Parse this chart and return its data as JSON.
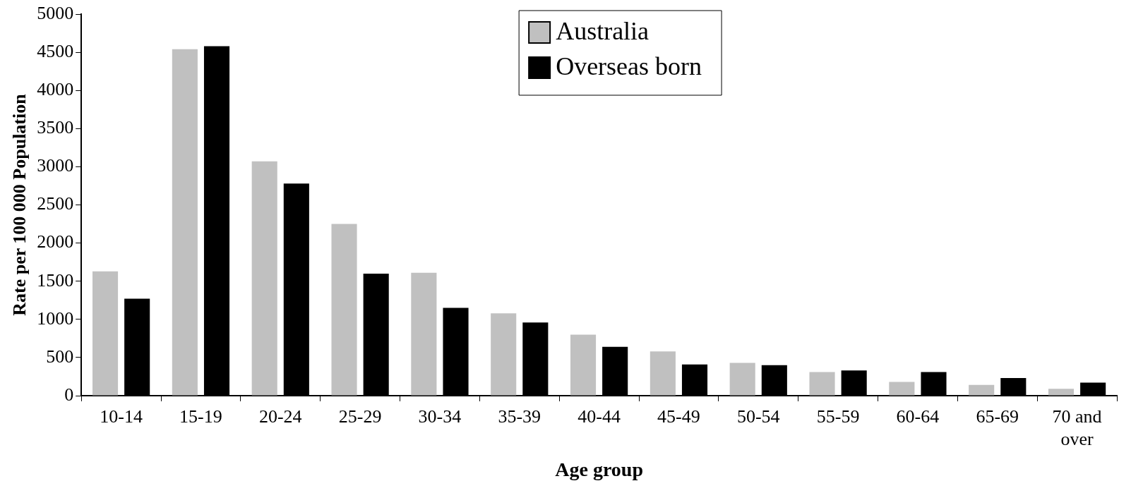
{
  "chart_data": {
    "type": "bar",
    "xlabel": "Age group",
    "ylabel": "Rate per 100 000 Population",
    "categories": [
      "10-14",
      "15-19",
      "20-24",
      "25-29",
      "30-34",
      "35-39",
      "40-44",
      "45-49",
      "50-54",
      "55-59",
      "60-64",
      "65-69",
      "70 and over"
    ],
    "series": [
      {
        "name": "Australia",
        "color": "#c0c0c0",
        "values": [
          1630,
          4540,
          3070,
          2250,
          1610,
          1080,
          800,
          580,
          430,
          310,
          180,
          140,
          90
        ]
      },
      {
        "name": "Overseas born",
        "color": "#000000",
        "values": [
          1270,
          4580,
          2780,
          1600,
          1150,
          960,
          640,
          410,
          400,
          330,
          310,
          230,
          170
        ]
      }
    ],
    "ylim": [
      0,
      5000
    ],
    "yticks": [
      0,
      500,
      1000,
      1500,
      2000,
      2500,
      3000,
      3500,
      4000,
      4500,
      5000
    ],
    "grid": false,
    "legend": "top"
  }
}
